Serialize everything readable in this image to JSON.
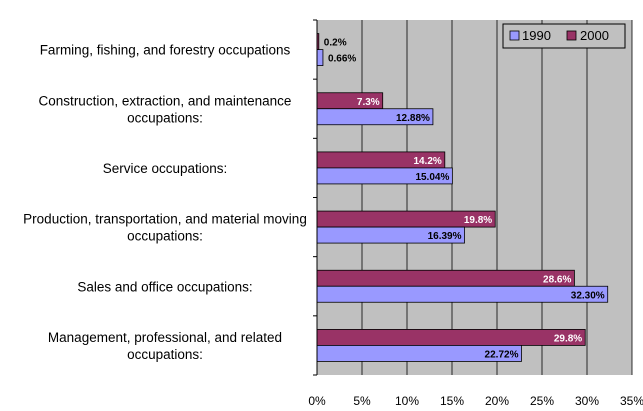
{
  "chart_data": {
    "type": "bar",
    "orientation": "horizontal",
    "categories": [
      [
        "Farming, fishing, and forestry occupations"
      ],
      [
        "Construction, extraction, and maintenance",
        "occupations:"
      ],
      [
        "Service occupations:"
      ],
      [
        "Production, transportation, and material moving",
        "occupations:"
      ],
      [
        "Sales and office occupations:"
      ],
      [
        "Management, professional, and related",
        "occupations:"
      ]
    ],
    "series": [
      {
        "name": "1990",
        "color": "#9999FF",
        "values": [
          0.66,
          12.88,
          15.04,
          16.39,
          32.3,
          22.72
        ],
        "labels": [
          "0.66%",
          "12.88%",
          "15.04%",
          "16.39%",
          "32.30%",
          "22.72%"
        ]
      },
      {
        "name": "2000",
        "color": "#993366",
        "values": [
          0.2,
          7.3,
          14.2,
          19.8,
          28.6,
          29.8
        ],
        "labels": [
          "0.2%",
          "7.3%",
          "14.2%",
          "19.8%",
          "28.6%",
          "29.8%"
        ]
      }
    ],
    "xlim": [
      0,
      35
    ],
    "x_ticks": [
      "0%",
      "5%",
      "10%",
      "15%",
      "20%",
      "25%",
      "30%",
      "35%"
    ],
    "grid": true,
    "plot_background": "#C0C0C0",
    "legend_position": "top-right"
  }
}
